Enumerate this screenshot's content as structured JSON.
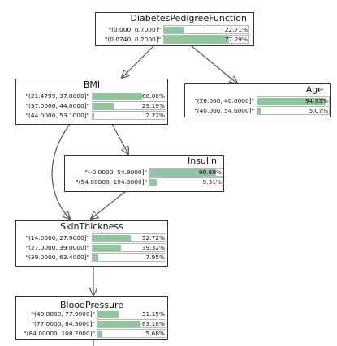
{
  "colors": {
    "bar_fill": "#8ec79b",
    "edge": "#555555",
    "border": "#333333"
  },
  "nodes": {
    "dpf": {
      "title": "DiabetesPedigreeFunction",
      "states": [
        {
          "label": "\"(0.000, 0.7000]\"",
          "percent_text": "22.71%",
          "percent": 22.71
        },
        {
          "label": "\"(0.0740, 0.2000]\"",
          "percent_text": "77.29%",
          "percent": 77.29
        }
      ]
    },
    "bmi": {
      "title": "BMI",
      "states": [
        {
          "label": "\"(21.4799, 37.0000]\"",
          "percent_text": "68.08%",
          "percent": 68.08
        },
        {
          "label": "\"(37.0000, 44.0000]\"",
          "percent_text": "29.19%",
          "percent": 29.19
        },
        {
          "label": "\"(44.0000, 53.1000]\"",
          "percent_text": "2.72%",
          "percent": 2.72
        }
      ]
    },
    "age": {
      "title": "Age",
      "states": [
        {
          "label": "\"(26.000, 40.0000]\"",
          "percent_text": "94.93%",
          "percent": 94.93
        },
        {
          "label": "\"(40.000, 54.6000]\"",
          "percent_text": "5.07%",
          "percent": 5.07
        }
      ]
    },
    "insulin": {
      "title": "Insulin",
      "states": [
        {
          "label": "\"(-0.0000, 54.9000]\"",
          "percent_text": "90.69%",
          "percent": 90.69
        },
        {
          "label": "\"(54.00000, 194.0000]\"",
          "percent_text": "9.31%",
          "percent": 9.31
        }
      ]
    },
    "skin": {
      "title": "SkinThickness",
      "states": [
        {
          "label": "\"(14.0000, 27.9000]\"",
          "percent_text": "52.72%",
          "percent": 52.72
        },
        {
          "label": "\"(27.0000, 39.0000]\"",
          "percent_text": "39.32%",
          "percent": 39.32
        },
        {
          "label": "\"(39.0000, 63.4000]\"",
          "percent_text": "7.95%",
          "percent": 7.95
        }
      ]
    },
    "bp": {
      "title": "BloodPressure",
      "states": [
        {
          "label": "\"(48.0000, 77.9000]\"",
          "percent_text": "31.15%",
          "percent": 31.15
        },
        {
          "label": "\"(77.0000, 84.3000]\"",
          "percent_text": "63.18%",
          "percent": 63.18
        },
        {
          "label": "\"(84.00000, 108.2000]\"",
          "percent_text": "5.68%",
          "percent": 5.68
        }
      ]
    }
  }
}
